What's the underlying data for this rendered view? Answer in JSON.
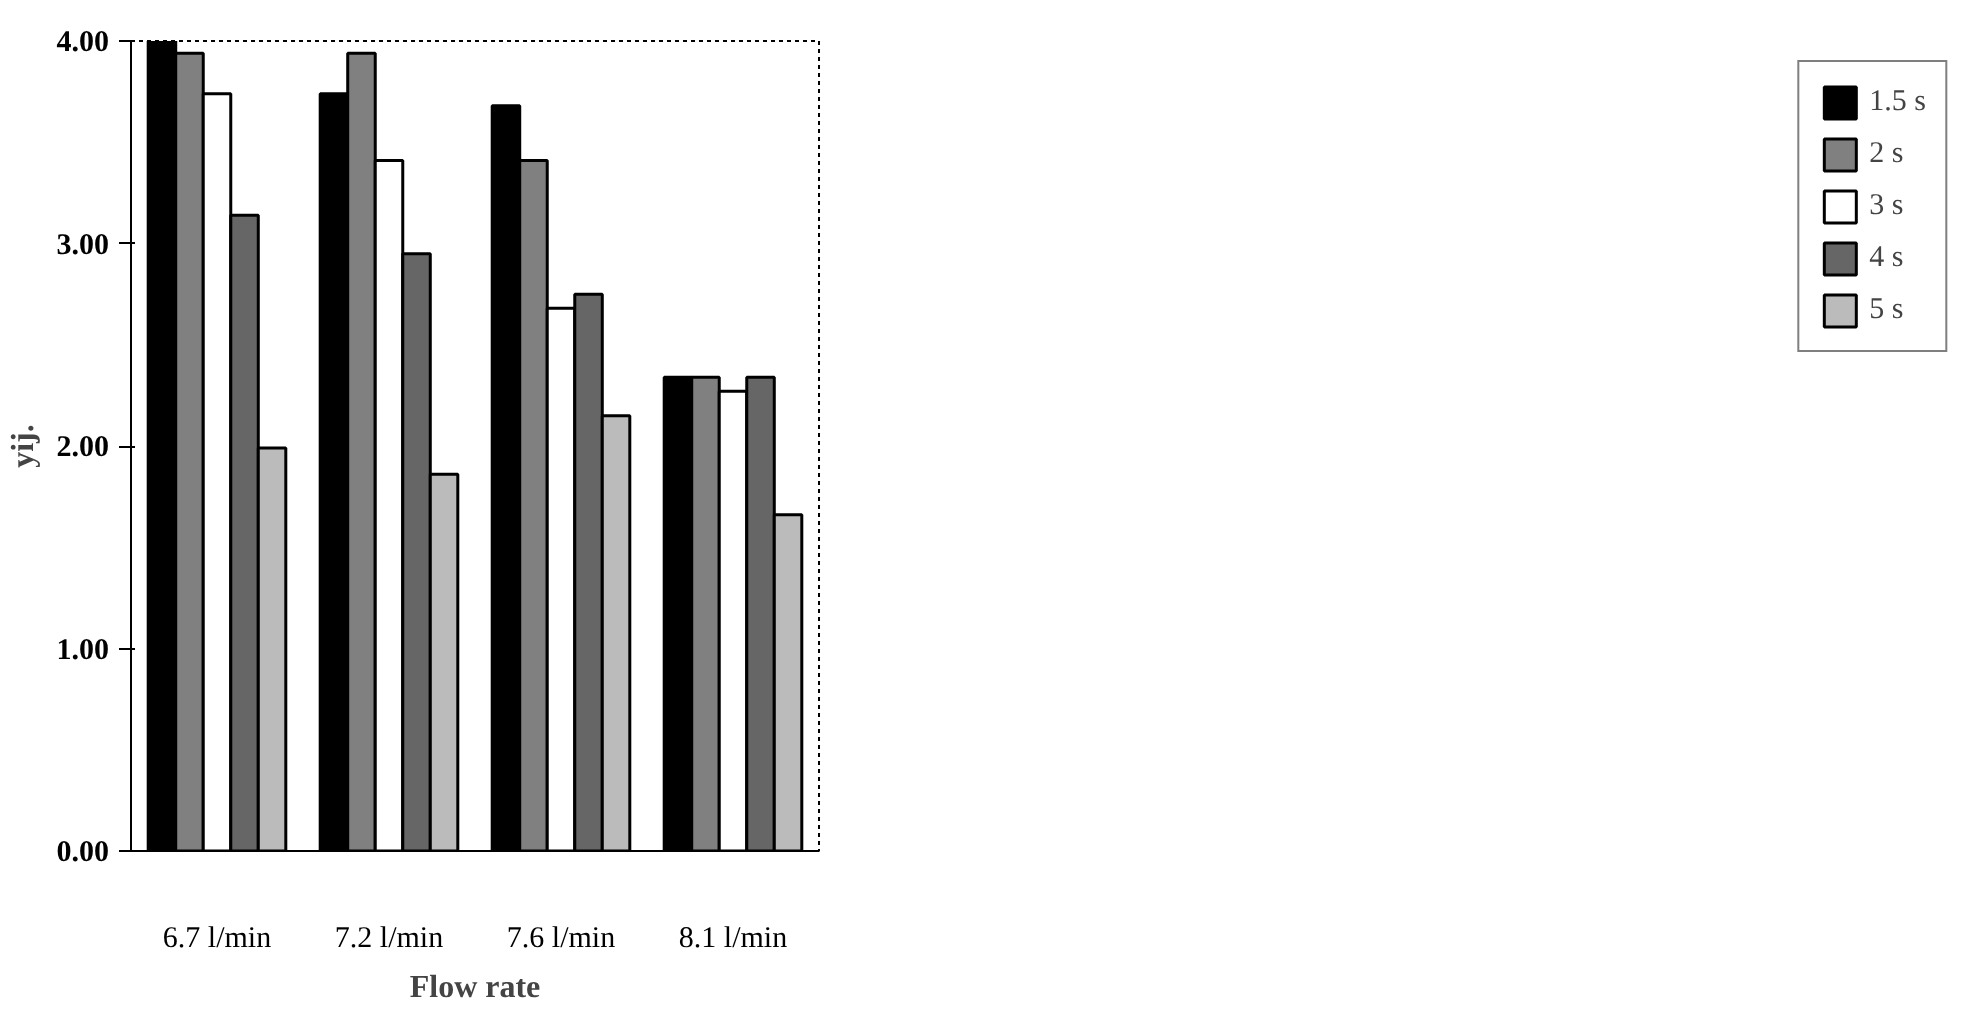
{
  "chart_data": {
    "type": "bar",
    "xlabel": "Flow rate",
    "ylabel": "yij.",
    "categories": [
      "6.7 l/min",
      "7.2 l/min",
      "7.6 l/min",
      "8.1 l/min"
    ],
    "series": [
      {
        "name": "1.5 s",
        "color": "#000000",
        "values": [
          4.0,
          3.74,
          3.68,
          2.34
        ]
      },
      {
        "name": "2 s",
        "color": "#808080",
        "values": [
          3.94,
          3.94,
          3.41,
          2.34
        ]
      },
      {
        "name": "3 s",
        "color": "#ffffff",
        "values": [
          3.74,
          3.41,
          2.68,
          2.27
        ]
      },
      {
        "name": "4 s",
        "color": "#666666",
        "values": [
          3.14,
          2.95,
          2.75,
          2.34
        ]
      },
      {
        "name": "5 s",
        "color": "#bbbbbb",
        "values": [
          1.99,
          1.86,
          2.15,
          1.66
        ]
      }
    ],
    "ylim": [
      0,
      4
    ],
    "yticks": [
      {
        "value": 0,
        "label": "0.00"
      },
      {
        "value": 1,
        "label": "1.00"
      },
      {
        "value": 2,
        "label": "2.00"
      },
      {
        "value": 3,
        "label": "3.00"
      },
      {
        "value": 4,
        "label": "4.00"
      }
    ],
    "grid": false,
    "legend": "right"
  }
}
